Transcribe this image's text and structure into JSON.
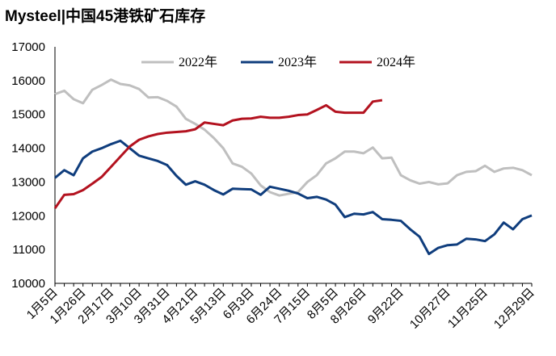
{
  "chart_data": {
    "type": "line",
    "title": "Mysteel|中国45港铁矿石库存",
    "categories": [
      "1月5日",
      null,
      null,
      "1月26日",
      null,
      null,
      "2月17日",
      null,
      null,
      "3月10日",
      null,
      null,
      "3月31日",
      null,
      null,
      "4月21日",
      null,
      null,
      "5月13日",
      null,
      null,
      "6月3日",
      null,
      null,
      "6月24日",
      null,
      null,
      "7月15日",
      null,
      null,
      "8月5日",
      null,
      null,
      "8月26日",
      null,
      null,
      null,
      "9月22日",
      null,
      null,
      null,
      null,
      "10月27日",
      null,
      null,
      null,
      "11月25日",
      null,
      null,
      null,
      null,
      "12月29日"
    ],
    "series": [
      {
        "name": "2022年",
        "color": "#bfbfbf",
        "values": [
          15600,
          15700,
          15450,
          15330,
          15730,
          15870,
          16030,
          15900,
          15860,
          15750,
          15500,
          15510,
          15400,
          15230,
          14870,
          14720,
          14550,
          14300,
          14000,
          13550,
          13450,
          13250,
          12900,
          12700,
          12600,
          12650,
          12700,
          13000,
          13200,
          13550,
          13700,
          13900,
          13900,
          13850,
          14020,
          13700,
          13720,
          13200,
          13050,
          12950,
          13000,
          12930,
          12960,
          13200,
          13300,
          13320,
          13480,
          13300,
          13400,
          13420,
          13350,
          13200
        ]
      },
      {
        "name": "2023年",
        "color": "#0f3d7d",
        "values": [
          13120,
          13350,
          13200,
          13700,
          13900,
          14000,
          14120,
          14220,
          14000,
          13780,
          13700,
          13620,
          13500,
          13180,
          12920,
          13020,
          12920,
          12760,
          12630,
          12800,
          12790,
          12780,
          12620,
          12860,
          12800,
          12740,
          12660,
          12520,
          12560,
          12480,
          12330,
          11960,
          12060,
          12040,
          12110,
          11900,
          11880,
          11850,
          11600,
          11380,
          10870,
          11050,
          11130,
          11150,
          11320,
          11300,
          11250,
          11450,
          11800,
          11600,
          11900,
          12010
        ]
      },
      {
        "name": "2024年",
        "color": "#b3121f",
        "values": [
          12220,
          12620,
          12640,
          12760,
          12950,
          13150,
          13450,
          13750,
          14050,
          14250,
          14350,
          14420,
          14460,
          14480,
          14500,
          14560,
          14760,
          14720,
          14680,
          14820,
          14870,
          14880,
          14930,
          14900,
          14900,
          14930,
          14980,
          15000,
          15130,
          15270,
          15080,
          15050,
          15050,
          15050,
          15380,
          15420,
          null,
          null,
          null,
          null,
          null,
          null,
          null,
          null,
          null,
          null,
          null,
          null,
          null,
          null,
          null,
          null
        ]
      }
    ],
    "ylim": [
      10000,
      17000
    ],
    "yticks": [
      10000,
      11000,
      12000,
      13000,
      14000,
      15000,
      16000,
      17000
    ],
    "legend": "top"
  }
}
